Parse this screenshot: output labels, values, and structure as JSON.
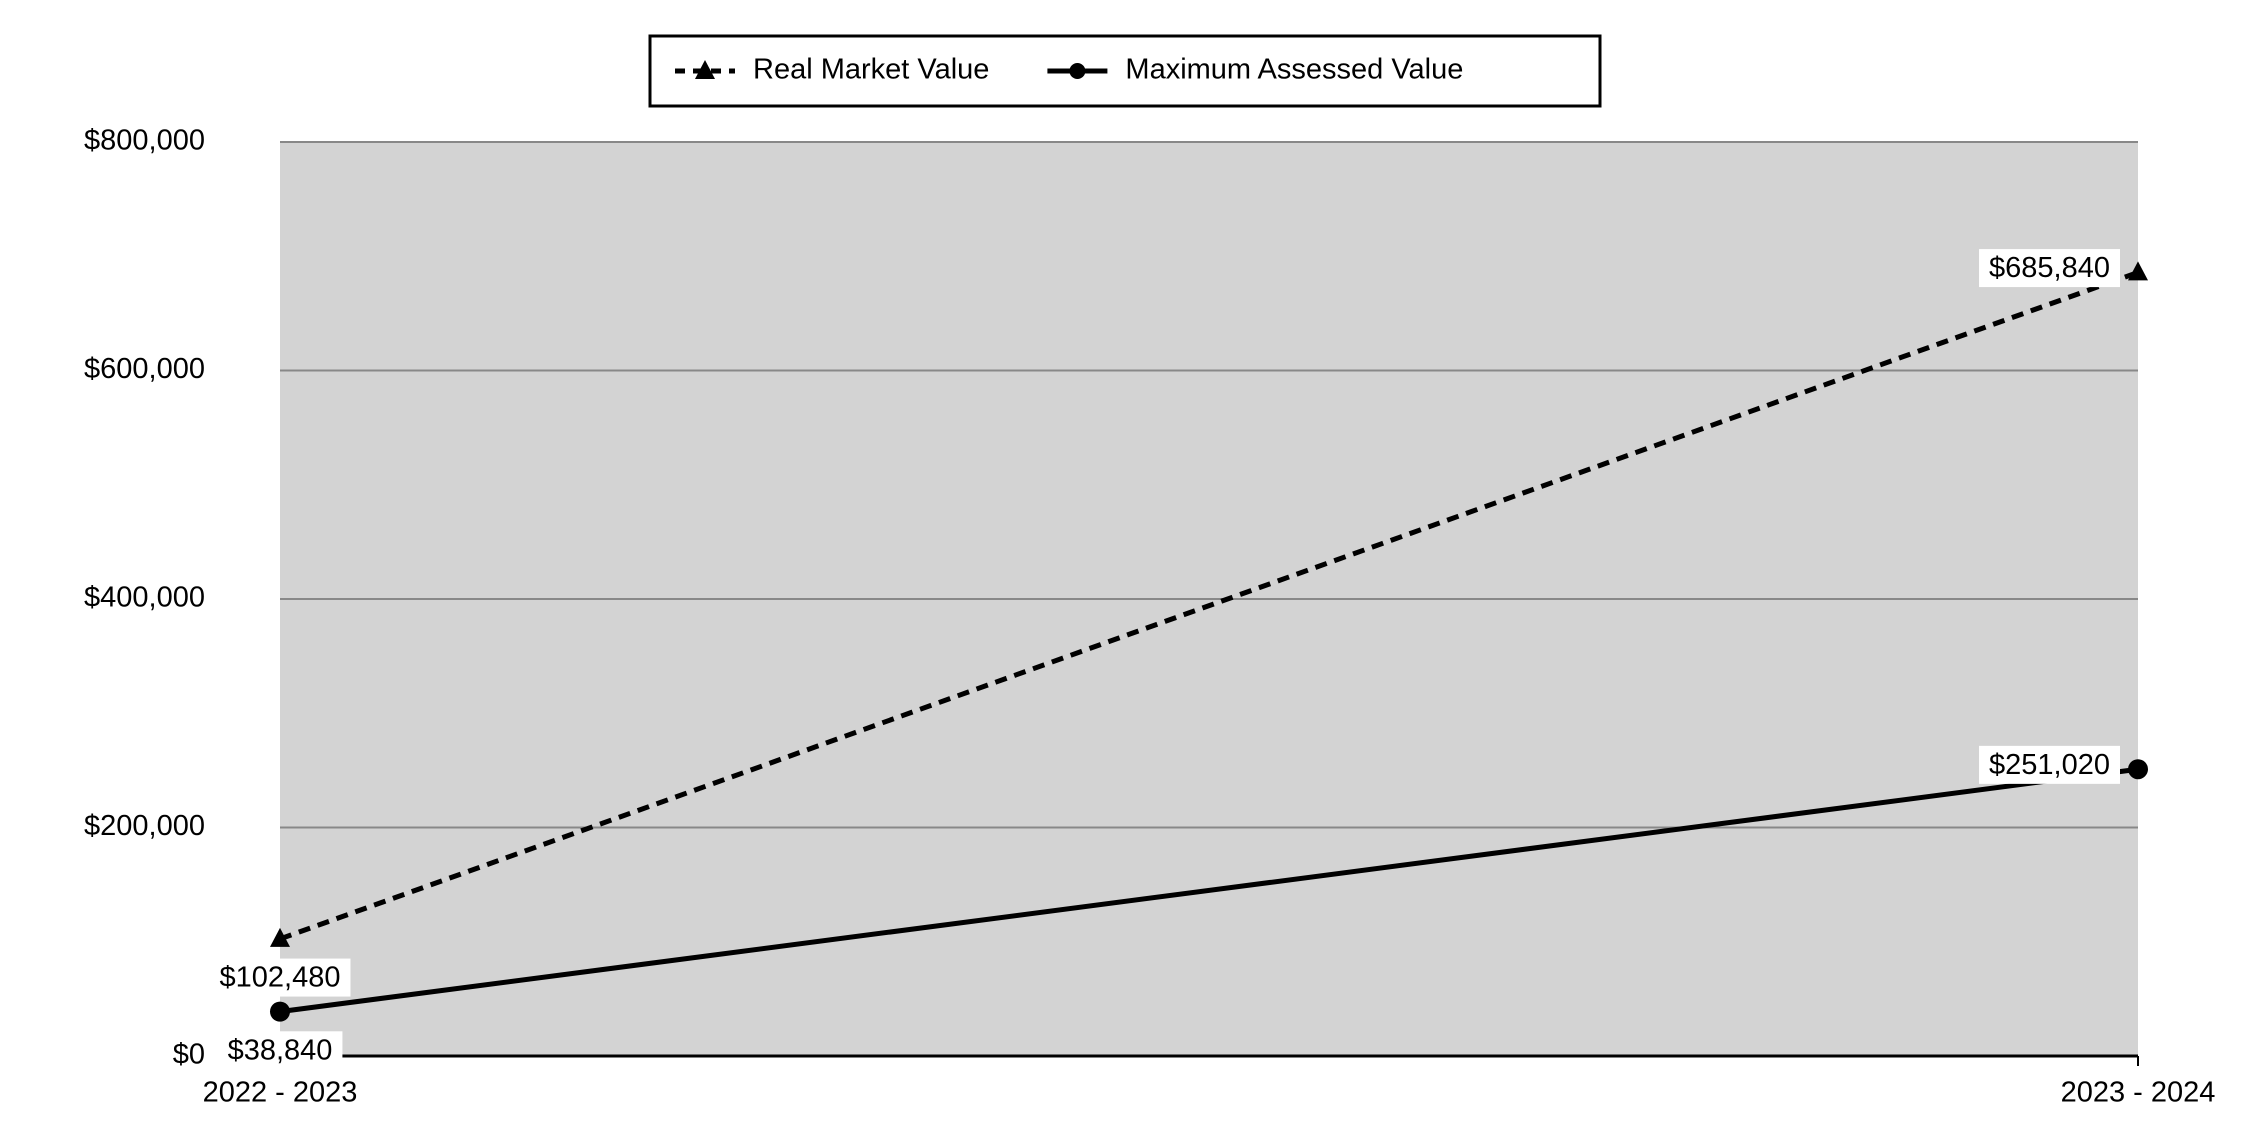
{
  "chart_data": {
    "type": "line",
    "categories": [
      "2022 - 2023",
      "2023 - 2024"
    ],
    "series": [
      {
        "name": "Real Market Value",
        "color": "#000000",
        "line_style": "dashed",
        "marker": "triangle",
        "values": [
          102480,
          685840
        ],
        "value_labels": [
          "$102,480",
          "$685,840"
        ]
      },
      {
        "name": "Maximum Assessed Value",
        "color": "#000000",
        "line_style": "solid",
        "marker": "circle",
        "values": [
          38840,
          251020
        ],
        "value_labels": [
          "$38,840",
          "$251,020"
        ]
      }
    ],
    "ylim": [
      0,
      800000
    ],
    "yticks": [
      {
        "value": 0,
        "label": "$0"
      },
      {
        "value": 200000,
        "label": "$200,000"
      },
      {
        "value": 400000,
        "label": "$400,000"
      },
      {
        "value": 600000,
        "label": "$600,000"
      },
      {
        "value": 800000,
        "label": "$800,000"
      }
    ],
    "grid": true,
    "legend": "top",
    "plot_background": "#d3d3d3"
  }
}
